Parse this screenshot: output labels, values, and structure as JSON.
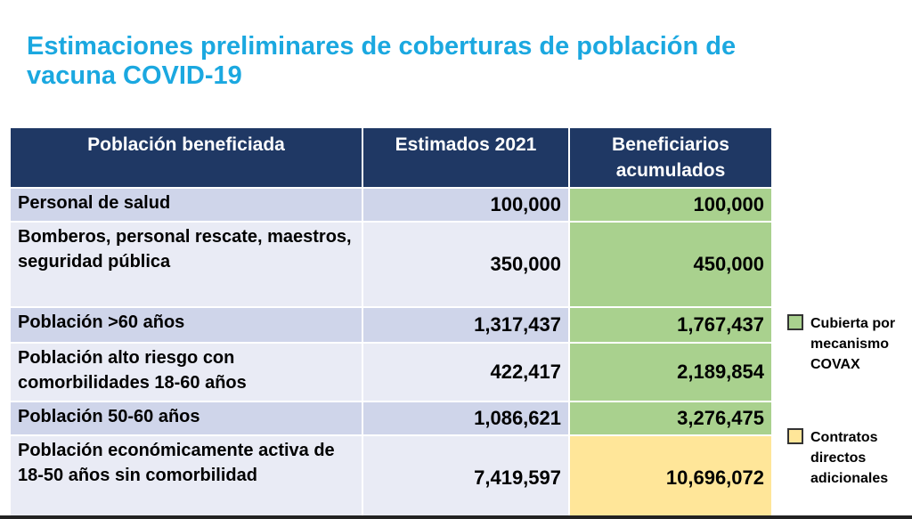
{
  "title": "Estimaciones preliminares de coberturas de población de vacuna COVID-19",
  "table": {
    "headers": [
      "Población beneficiada",
      "Estimados 2021",
      "Beneficiarios acumulados"
    ],
    "rows": [
      {
        "label": "Personal de salud",
        "estimate": "100,000",
        "cumulative": "100,000",
        "category": "covax"
      },
      {
        "label": "Bomberos, personal rescate, maestros, seguridad pública",
        "estimate": "350,000",
        "cumulative": "450,000",
        "category": "covax"
      },
      {
        "label": "Población >60 años",
        "estimate": "1,317,437",
        "cumulative": "1,767,437",
        "category": "covax"
      },
      {
        "label": "Población alto riesgo con comorbilidades 18-60 años",
        "estimate": "422,417",
        "cumulative": "2,189,854",
        "category": "covax"
      },
      {
        "label": "Población 50-60 años",
        "estimate": "1,086,621",
        "cumulative": "3,276,475",
        "category": "covax"
      },
      {
        "label": "Población económicamente activa de 18-50 años sin comorbilidad",
        "estimate": "7,419,597",
        "cumulative": "10,696,072",
        "category": "direct"
      }
    ]
  },
  "legend": {
    "covax": {
      "label": "Cubierta por mecanismo COVAX",
      "color": "#a9d18e"
    },
    "direct": {
      "label": "Contratos directos adicionales",
      "color": "#ffe699"
    }
  },
  "colors": {
    "title": "#1ba8e0",
    "header_bg": "#1f3864",
    "row_dark": "#cfd5ea",
    "row_light": "#e9ebf5"
  }
}
